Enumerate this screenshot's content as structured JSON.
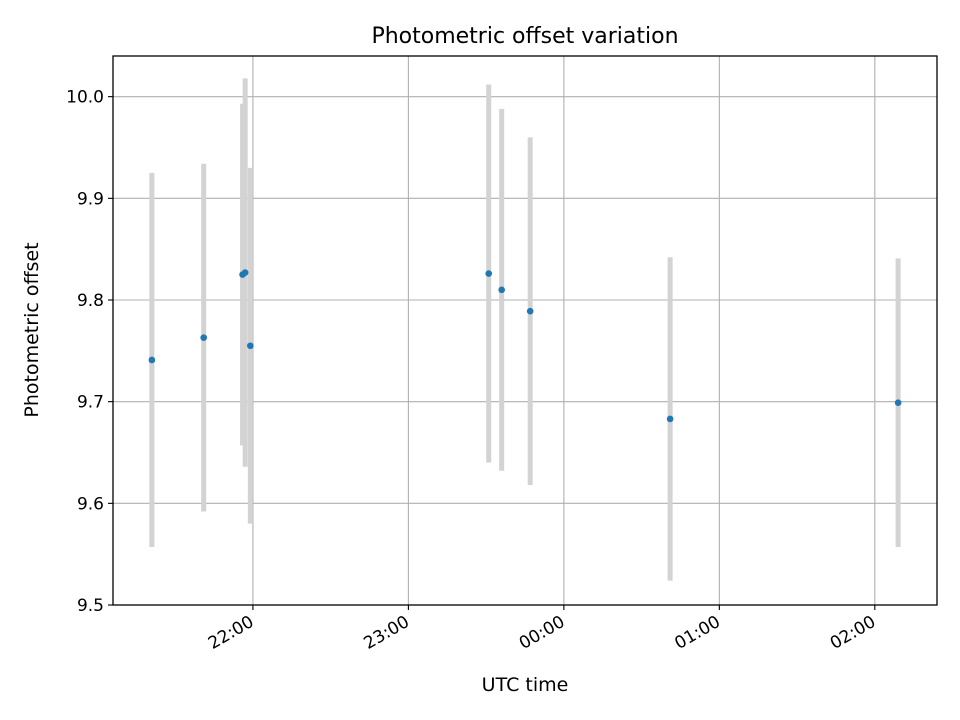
{
  "chart_data": {
    "type": "scatter",
    "title": "Photometric offset variation",
    "xlabel": "UTC time",
    "ylabel": "Photometric offset",
    "x_axis_type": "time",
    "xlim": [
      "21:06",
      "02:24"
    ],
    "ylim": [
      9.5,
      10.04
    ],
    "grid": true,
    "x_ticks": [
      "22:00",
      "23:00",
      "00:00",
      "01:00",
      "02:00"
    ],
    "y_ticks": [
      "9.5",
      "9.6",
      "9.7",
      "9.8",
      "9.9",
      "10.0"
    ],
    "series": [
      {
        "marker_color": "#1f77b4",
        "errorbar_color": "#d3d3d3",
        "points": [
          {
            "x": "21:21",
            "y": 9.741,
            "yerr": 0.184
          },
          {
            "x": "21:41",
            "y": 9.763,
            "yerr": 0.171
          },
          {
            "x": "21:56",
            "y": 9.825,
            "yerr": 0.168
          },
          {
            "x": "21:57",
            "y": 9.827,
            "yerr": 0.191
          },
          {
            "x": "21:59",
            "y": 9.755,
            "yerr": 0.175
          },
          {
            "x": "23:31",
            "y": 9.826,
            "yerr": 0.186
          },
          {
            "x": "23:36",
            "y": 9.81,
            "yerr": 0.178
          },
          {
            "x": "23:47",
            "y": 9.789,
            "yerr": 0.171
          },
          {
            "x": "00:41",
            "y": 9.683,
            "yerr": 0.159
          },
          {
            "x": "02:09",
            "y": 9.699,
            "yerr": 0.142
          }
        ]
      }
    ]
  }
}
